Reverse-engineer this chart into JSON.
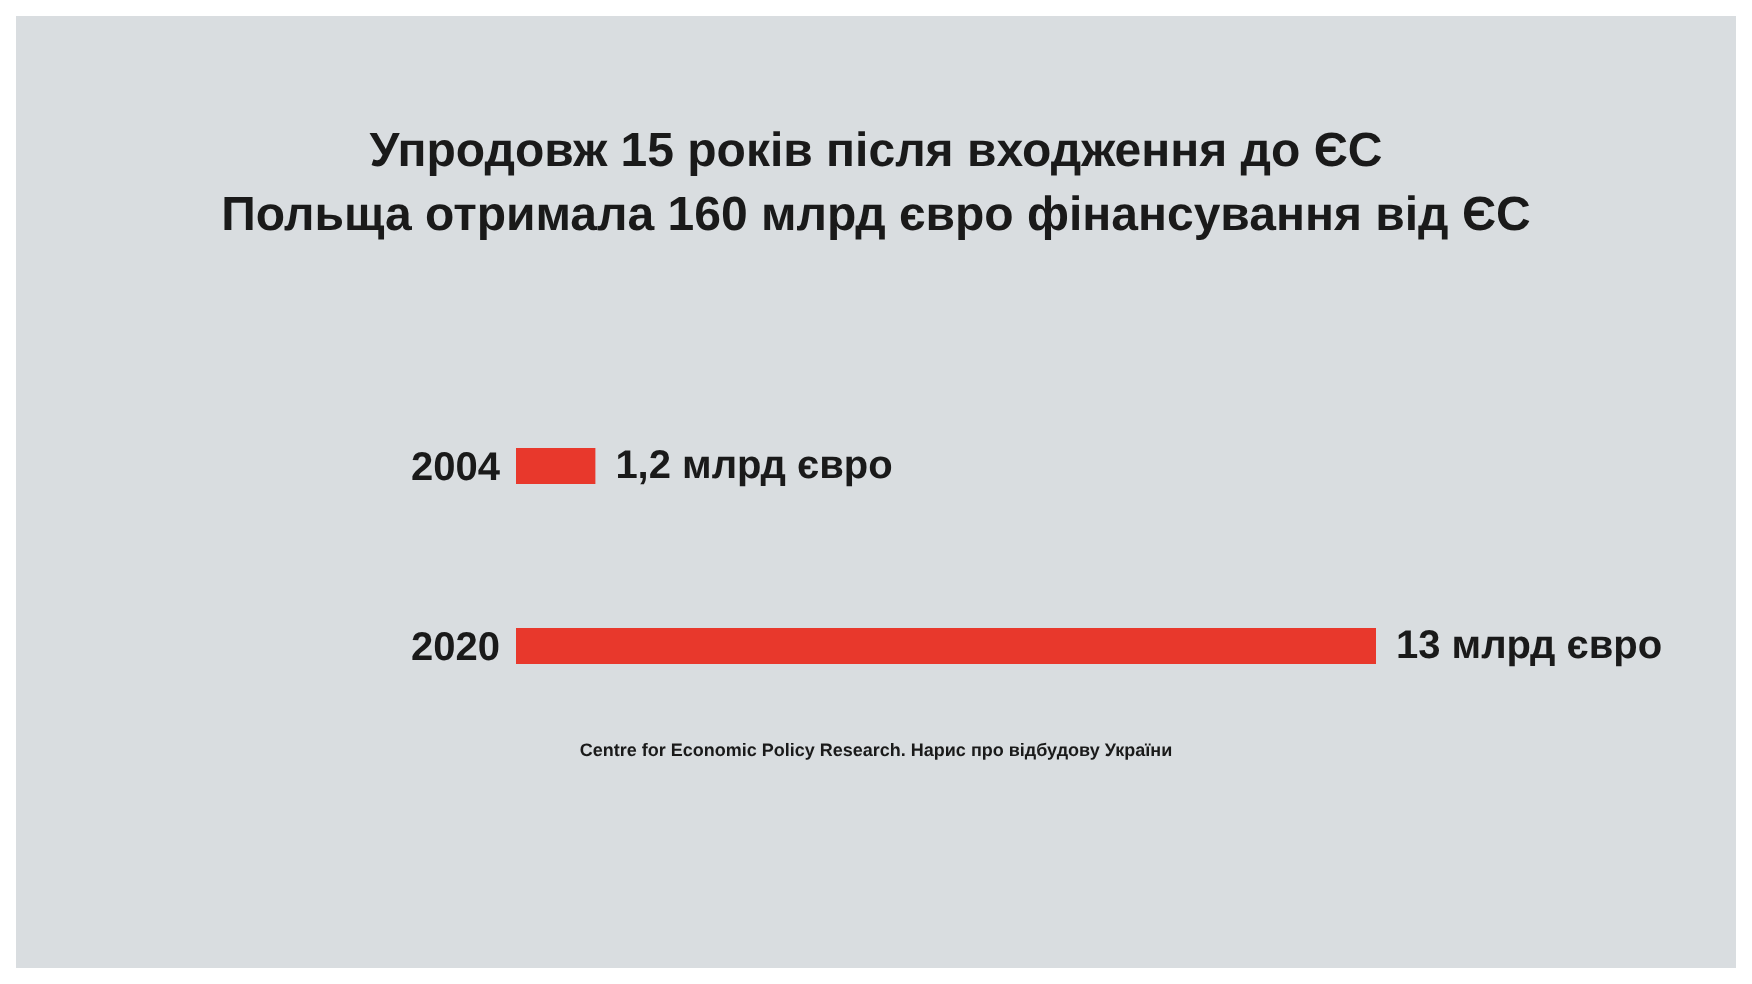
{
  "chart_data": {
    "type": "bar",
    "orientation": "horizontal",
    "title": "Упродовж 15 років після входження до ЄС\nПольща отримала 160 млрд євро фінансування від ЄС",
    "categories": [
      "2004",
      "2020"
    ],
    "values": [
      1.2,
      13
    ],
    "value_labels": [
      "1,2 млрд євро",
      "13 млрд євро"
    ],
    "color": "#e8382c",
    "annotations": [
      "Centre for Economic Policy Research. Нарис про відбудову України"
    ]
  }
}
